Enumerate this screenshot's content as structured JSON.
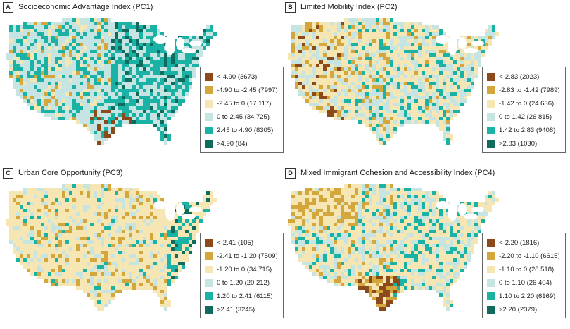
{
  "panels": [
    {
      "letter": "A",
      "title": "Socioeconomic Advantage Index (PC1)",
      "scheme": "pc1",
      "legend": [
        {
          "label": "<-4.90 (3673)",
          "color": "#8c4a1a"
        },
        {
          "label": "-4.90 to -2.45 (7997)",
          "color": "#d4a73c"
        },
        {
          "label": "-2.45 to 0 (17 117)",
          "color": "#f5e6b3"
        },
        {
          "label": "0 to 2.45 (34 725)",
          "color": "#c6e4e2"
        },
        {
          "label": "2.45 to 4.90 (8305)",
          "color": "#19b2a5"
        },
        {
          "label": ">4.90 (84)",
          "color": "#0f6b5e"
        }
      ]
    },
    {
      "letter": "B",
      "title": "Limited Mobility Index (PC2)",
      "scheme": "pc2",
      "legend": [
        {
          "label": "<-2.83 (2023)",
          "color": "#8c4a1a"
        },
        {
          "label": "-2.83 to -1.42 (7989)",
          "color": "#d4a73c"
        },
        {
          "label": "-1.42 to 0 (24 636)",
          "color": "#f5e6b3"
        },
        {
          "label": "0 to 1.42 (26 815)",
          "color": "#c6e4e2"
        },
        {
          "label": "1.42 to 2.83 (9408)",
          "color": "#19b2a5"
        },
        {
          "label": ">2.83 (1030)",
          "color": "#0f6b5e"
        }
      ]
    },
    {
      "letter": "C",
      "title": "Urban Core Opportunity (PC3)",
      "scheme": "pc3",
      "legend": [
        {
          "label": "<-2.41 (105)",
          "color": "#8c4a1a"
        },
        {
          "label": "-2.41 to -1.20 (7509)",
          "color": "#d4a73c"
        },
        {
          "label": "-1.20 to 0 (34 715)",
          "color": "#f5e6b3"
        },
        {
          "label": "0 to 1.20 (20 212)",
          "color": "#c6e4e2"
        },
        {
          "label": "1.20 to 2.41 (6115)",
          "color": "#19b2a5"
        },
        {
          "label": ">2.41 (3245)",
          "color": "#0f6b5e"
        }
      ]
    },
    {
      "letter": "D",
      "title": "Mixed Immigrant Cohesion and Accessibility Index (PC4)",
      "scheme": "pc4",
      "legend": [
        {
          "label": "<-2.20 (1816)",
          "color": "#8c4a1a"
        },
        {
          "label": "-2.20 to -1.10 (6615)",
          "color": "#d4a73c"
        },
        {
          "label": "-1.10 to 0 (28 518)",
          "color": "#f5e6b3"
        },
        {
          "label": "0 to 1.10 (26 404)",
          "color": "#c6e4e2"
        },
        {
          "label": "1.10 to 2.20 (6169)",
          "color": "#19b2a5"
        },
        {
          "label": ">2.20 (2379)",
          "color": "#0f6b5e"
        }
      ]
    }
  ]
}
